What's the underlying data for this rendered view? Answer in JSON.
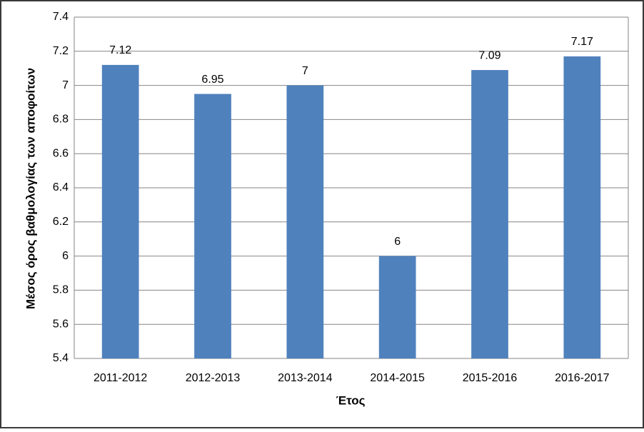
{
  "chart_data": {
    "type": "bar",
    "y_label": "Μέσος όρος βαθμολογίας των αποφοίτων",
    "x_label": "Έτος",
    "categories": [
      "2011-2012",
      "2012-2013",
      "2013-2014",
      "2014-2015",
      "2015-2016",
      "2016-2017"
    ],
    "values": [
      7.12,
      6.95,
      7,
      6,
      7.09,
      7.17
    ],
    "color": "#4f81bd",
    "ylim": [
      5.4,
      7.4
    ],
    "yticks": [
      5.4,
      5.6,
      5.8,
      6,
      6.2,
      6.4,
      6.6,
      6.8,
      7,
      7.2,
      7.4
    ],
    "grid": true
  }
}
